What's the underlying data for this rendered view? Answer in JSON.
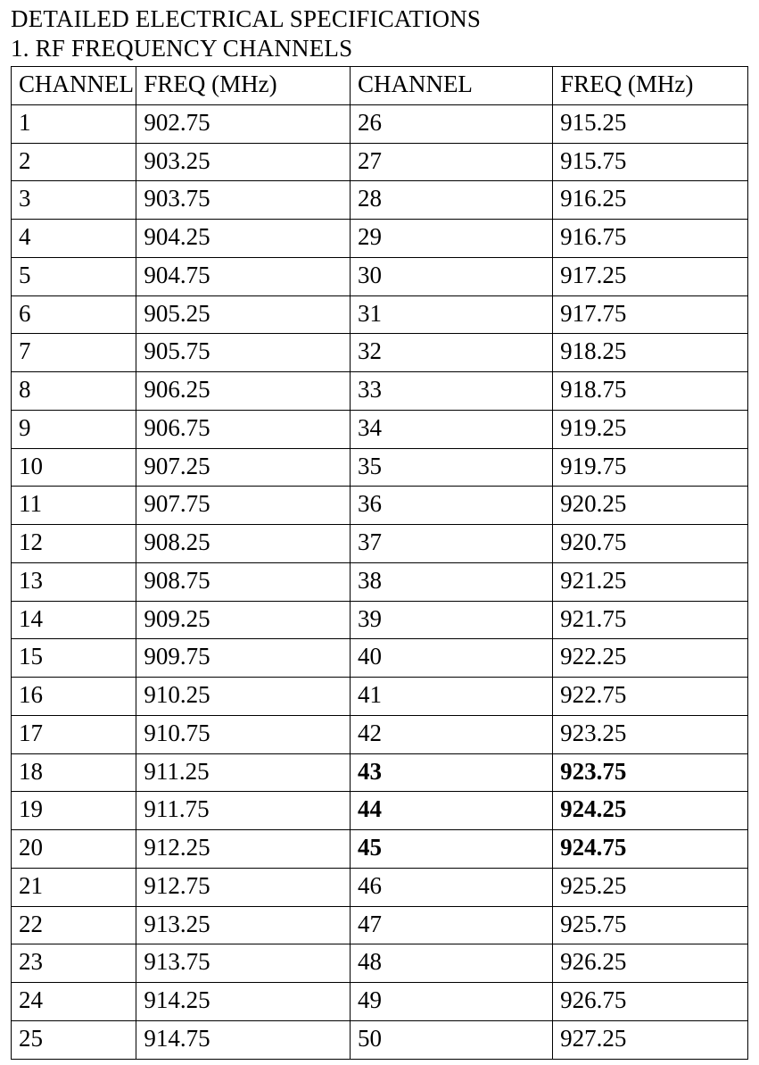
{
  "title": "DETAILED ELECTRICAL SPECIFICATIONS",
  "subtitle": "1. RF FREQUENCY CHANNELS",
  "table": {
    "type": "table",
    "columns": [
      "CHANNEL",
      "FREQ (MHz)",
      "CHANNEL",
      "FREQ (MHz)"
    ],
    "col_widths_pct": [
      17,
      29,
      27.5,
      26.5
    ],
    "font_family": "Times New Roman",
    "font_size_pt": 20,
    "border_color": "#000000",
    "background_color": "#ffffff",
    "text_color": "#000000",
    "bold_rows": [
      17,
      18,
      19
    ],
    "bold_columns": [
      2,
      3
    ],
    "rows": [
      [
        "1",
        "902.75",
        "26",
        "915.25"
      ],
      [
        "2",
        "903.25",
        "27",
        "915.75"
      ],
      [
        "3",
        "903.75",
        "28",
        "916.25"
      ],
      [
        "4",
        "904.25",
        "29",
        "916.75"
      ],
      [
        "5",
        "904.75",
        "30",
        "917.25"
      ],
      [
        "6",
        "905.25",
        "31",
        "917.75"
      ],
      [
        "7",
        "905.75",
        "32",
        "918.25"
      ],
      [
        "8",
        "906.25",
        "33",
        "918.75"
      ],
      [
        "9",
        "906.75",
        "34",
        "919.25"
      ],
      [
        "10",
        "907.25",
        "35",
        "919.75"
      ],
      [
        "11",
        "907.75",
        "36",
        "920.25"
      ],
      [
        "12",
        "908.25",
        "37",
        "920.75"
      ],
      [
        "13",
        "908.75",
        "38",
        "921.25"
      ],
      [
        "14",
        "909.25",
        "39",
        "921.75"
      ],
      [
        "15",
        "909.75",
        "40",
        "922.25"
      ],
      [
        "16",
        "910.25",
        "41",
        "922.75"
      ],
      [
        "17",
        "910.75",
        "42",
        "923.25"
      ],
      [
        "18",
        "911.25",
        "43",
        "923.75"
      ],
      [
        "19",
        "911.75",
        "44",
        "924.25"
      ],
      [
        "20",
        "912.25",
        "45",
        "924.75"
      ],
      [
        "21",
        "912.75",
        "46",
        "925.25"
      ],
      [
        "22",
        "913.25",
        "47",
        "925.75"
      ],
      [
        "23",
        "913.75",
        "48",
        "926.25"
      ],
      [
        "24",
        "914.25",
        "49",
        "926.75"
      ],
      [
        "25",
        "914.75",
        "50",
        "927.25"
      ]
    ]
  }
}
